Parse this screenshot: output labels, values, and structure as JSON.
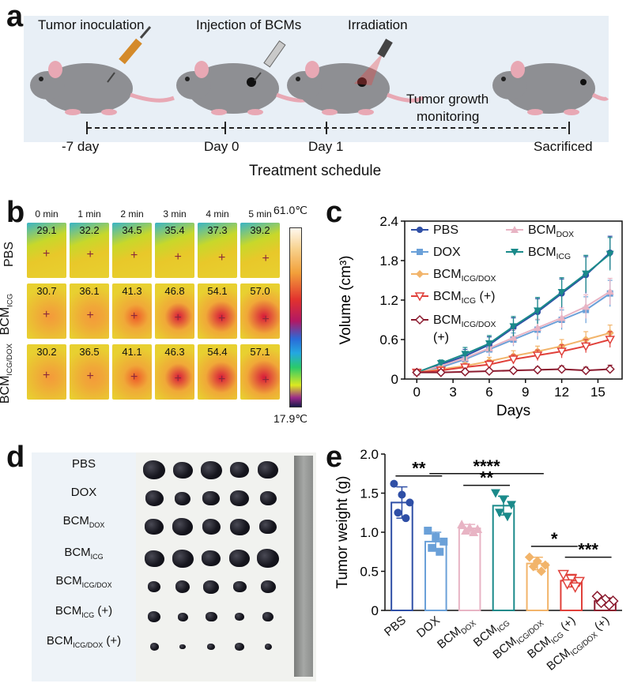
{
  "panels": {
    "a": "a",
    "b": "b",
    "c": "c",
    "d": "d",
    "e": "e"
  },
  "schedule": {
    "steps": [
      "Tumor  inoculation",
      "Injection of BCMs",
      "Irradiation",
      "Tumor  growth",
      "monitoring"
    ],
    "timepoints": [
      "-7 day",
      "Day 0",
      "Day 1",
      "Sacrificed"
    ],
    "title": "Treatment schedule"
  },
  "thermal": {
    "times": [
      "0 min",
      "1 min",
      "2 min",
      "3 min",
      "4 min",
      "5 min"
    ],
    "rows": [
      {
        "label": "PBS",
        "sub": "",
        "temps": [
          "29.1",
          "32.2",
          "34.5",
          "35.4",
          "37.3",
          "39.2"
        ]
      },
      {
        "label": "BCM",
        "sub": "ICG",
        "temps": [
          "30.7",
          "36.1",
          "41.3",
          "46.8",
          "54.1",
          "57.0"
        ]
      },
      {
        "label": "BCM",
        "sub": "ICG/DOX",
        "temps": [
          "30.2",
          "36.5",
          "41.1",
          "46.3",
          "54.4",
          "57.1"
        ]
      }
    ],
    "scale_max": "61.0℃",
    "scale_min": "17.9℃"
  },
  "chart_data": [
    {
      "type": "line",
      "panel": "c",
      "title": "",
      "xlabel": "Days",
      "ylabel": "Volume (cm³)",
      "xlim": [
        -1,
        17
      ],
      "ylim": [
        0,
        2.4
      ],
      "xticks": [
        "0",
        "3",
        "6",
        "9",
        "12",
        "15"
      ],
      "yticks": [
        "0",
        "0.6",
        "1.2",
        "1.8",
        "2.4"
      ],
      "x": [
        0,
        2,
        4,
        6,
        8,
        10,
        12,
        14,
        16
      ],
      "series": [
        {
          "name": "PBS",
          "base": "PBS",
          "sub": "",
          "suffix": "",
          "color": "#2f4fa6",
          "marker": "circle",
          "values": [
            0.1,
            0.22,
            0.35,
            0.52,
            0.78,
            1.02,
            1.3,
            1.58,
            1.92
          ],
          "errors": [
            0.03,
            0.05,
            0.1,
            0.12,
            0.15,
            0.2,
            0.22,
            0.28,
            0.25
          ]
        },
        {
          "name": "DOX",
          "base": "DOX",
          "sub": "",
          "suffix": "",
          "color": "#6aa0d8",
          "marker": "square",
          "values": [
            0.1,
            0.18,
            0.3,
            0.45,
            0.6,
            0.75,
            0.9,
            1.05,
            1.3
          ],
          "errors": [
            0.03,
            0.04,
            0.08,
            0.1,
            0.1,
            0.15,
            0.15,
            0.2,
            0.2
          ]
        },
        {
          "name": "BCMDOX",
          "base": "BCM",
          "sub": "DOX",
          "suffix": "",
          "color": "#e8b4c4",
          "marker": "triangle",
          "values": [
            0.1,
            0.2,
            0.32,
            0.47,
            0.63,
            0.78,
            0.93,
            1.1,
            1.33
          ],
          "errors": [
            0.03,
            0.05,
            0.08,
            0.1,
            0.12,
            0.13,
            0.15,
            0.18,
            0.2
          ]
        },
        {
          "name": "BCMICG",
          "base": "BCM",
          "sub": "ICG",
          "suffix": "",
          "color": "#1a8a8a",
          "marker": "tri-down",
          "values": [
            0.1,
            0.24,
            0.38,
            0.54,
            0.8,
            1.04,
            1.32,
            1.6,
            1.9
          ],
          "errors": [
            0.03,
            0.05,
            0.1,
            0.12,
            0.15,
            0.2,
            0.22,
            0.28,
            0.25
          ]
        },
        {
          "name": "BCMICG/DOX",
          "base": "BCM",
          "sub": "ICG/DOX",
          "suffix": "",
          "color": "#f2b46a",
          "marker": "diamond",
          "values": [
            0.1,
            0.15,
            0.2,
            0.27,
            0.35,
            0.42,
            0.5,
            0.6,
            0.7
          ],
          "errors": [
            0.02,
            0.04,
            0.05,
            0.06,
            0.08,
            0.08,
            0.1,
            0.12,
            0.12
          ]
        },
        {
          "name": "BCMICG (+)",
          "base": "BCM",
          "sub": "ICG",
          "suffix": " (+)",
          "color": "#e0403a",
          "marker": "tri-down-open",
          "values": [
            0.1,
            0.13,
            0.18,
            0.22,
            0.3,
            0.36,
            0.42,
            0.5,
            0.6
          ],
          "errors": [
            0.02,
            0.03,
            0.05,
            0.06,
            0.07,
            0.08,
            0.1,
            0.1,
            0.12
          ]
        },
        {
          "name": "BCMICG/DOX (+)",
          "base": "BCM",
          "sub": "ICG/DOX",
          "suffix": "",
          "extra": "(+)",
          "color": "#8b1a2e",
          "marker": "diamond-open",
          "values": [
            0.1,
            0.1,
            0.11,
            0.12,
            0.13,
            0.14,
            0.15,
            0.13,
            0.15
          ],
          "errors": [
            0.02,
            0.02,
            0.03,
            0.03,
            0.03,
            0.04,
            0.05,
            0.05,
            0.06
          ]
        }
      ]
    },
    {
      "type": "bar",
      "panel": "e",
      "title": "",
      "xlabel": "",
      "ylabel": "Tumor weight (g)",
      "ylim": [
        0,
        2.0
      ],
      "yticks": [
        "0",
        "0.5",
        "1.0",
        "1.5",
        "2.0"
      ],
      "categories": [
        {
          "base": "PBS",
          "sub": "",
          "suffix": ""
        },
        {
          "base": "DOX",
          "sub": "",
          "suffix": ""
        },
        {
          "base": "BCM",
          "sub": "DOX",
          "suffix": ""
        },
        {
          "base": "BCM",
          "sub": "ICG",
          "suffix": ""
        },
        {
          "base": "BCM",
          "sub": "ICG/DOX",
          "suffix": ""
        },
        {
          "base": "BCM",
          "sub": "ICG",
          "suffix": " (+)"
        },
        {
          "base": "BCM",
          "sub": "ICG/DOX",
          "suffix": " (+)"
        }
      ],
      "values": [
        1.38,
        0.88,
        1.05,
        1.34,
        0.6,
        0.38,
        0.12
      ],
      "errors": [
        0.2,
        0.12,
        0.05,
        0.12,
        0.08,
        0.08,
        0.04
      ],
      "colors": [
        "#2f4fa6",
        "#6aa0d8",
        "#e8b4c4",
        "#1a8a8a",
        "#f2b46a",
        "#e0403a",
        "#8b1a2e"
      ],
      "points": [
        [
          1.62,
          1.48,
          1.38,
          1.25,
          1.18
        ],
        [
          1.02,
          0.94,
          0.88,
          0.8,
          0.75
        ],
        [
          1.1,
          1.06,
          1.04,
          1.02,
          1.0
        ],
        [
          1.5,
          1.42,
          1.35,
          1.25,
          1.2
        ],
        [
          0.68,
          0.63,
          0.58,
          0.56,
          0.5
        ],
        [
          0.46,
          0.4,
          0.37,
          0.34,
          0.3
        ],
        [
          0.18,
          0.14,
          0.12,
          0.1,
          0.07
        ]
      ],
      "significance": [
        {
          "from": 0,
          "to": 1,
          "label": "**"
        },
        {
          "from": 2,
          "to": 3,
          "label": "**"
        },
        {
          "from": 1,
          "to": 4,
          "label": "****"
        },
        {
          "from": 4,
          "to": 5,
          "label": "*"
        },
        {
          "from": 5,
          "to": 6,
          "label": "***"
        }
      ]
    }
  ],
  "photo": {
    "labels": [
      {
        "base": "PBS",
        "sub": "",
        "suffix": ""
      },
      {
        "base": "DOX",
        "sub": "",
        "suffix": ""
      },
      {
        "base": "BCM",
        "sub": "DOX",
        "suffix": ""
      },
      {
        "base": "BCM",
        "sub": "ICG",
        "suffix": ""
      },
      {
        "base": "BCM",
        "sub": "ICG/DOX",
        "suffix": ""
      },
      {
        "base": "BCM",
        "sub": "ICG",
        "suffix": " (+)"
      },
      {
        "base": "BCM",
        "sub": "ICG/DOX",
        "suffix": " (+)"
      }
    ]
  }
}
